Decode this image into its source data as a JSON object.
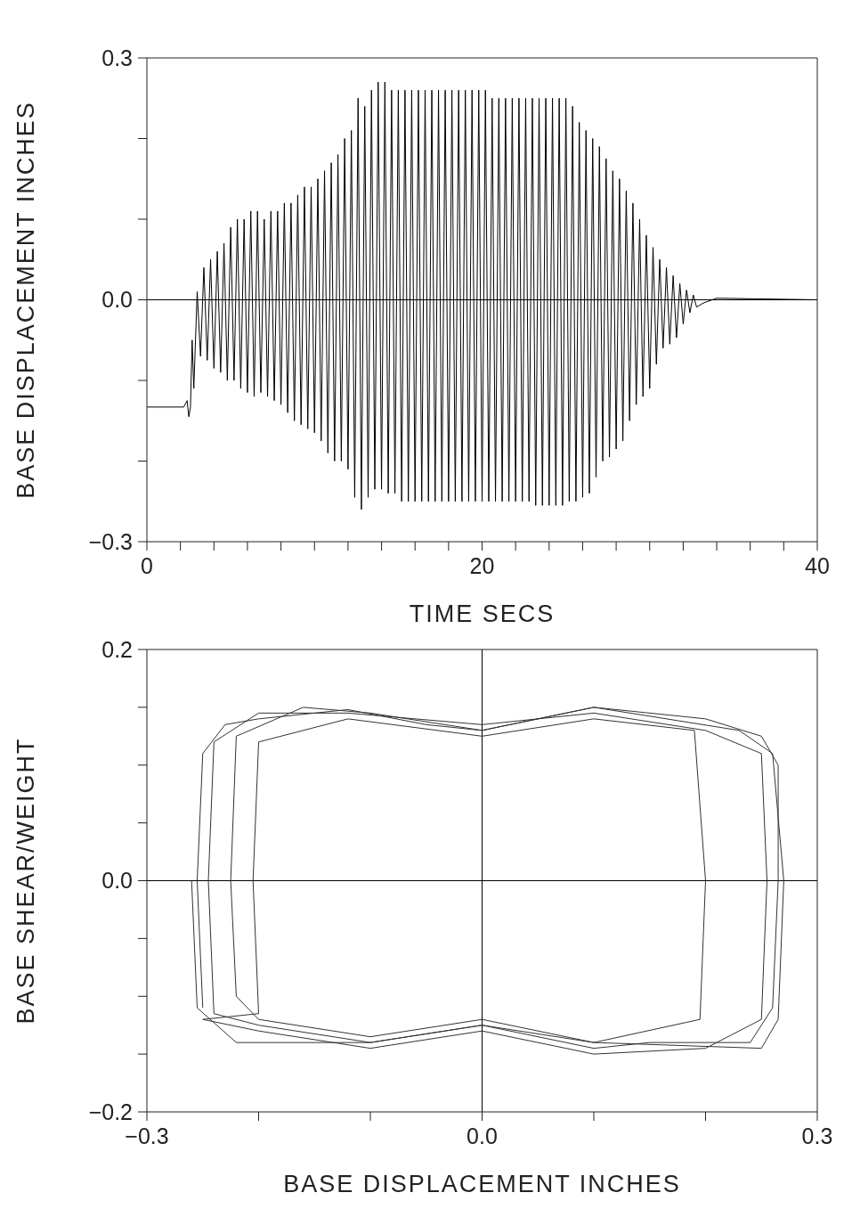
{
  "chart_data": [
    {
      "type": "line",
      "xlabel": "TIME    SECS",
      "ylabel": "BASE DISPLACEMENT INCHES",
      "marker": "none",
      "line_style": "solid",
      "xlim": [
        0,
        40
      ],
      "ylim": [
        -0.3,
        0.3
      ],
      "xticks": [
        0,
        {
          "value": 2,
          "label": null
        },
        {
          "value": 4,
          "label": null
        },
        {
          "value": 6,
          "label": null
        },
        {
          "value": 8,
          "label": null
        },
        {
          "value": 10,
          "label": null
        },
        {
          "value": 12,
          "label": null
        },
        {
          "value": 14,
          "label": null
        },
        {
          "value": 16,
          "label": null
        },
        {
          "value": 18,
          "label": null
        },
        20,
        {
          "value": 22,
          "label": null
        },
        {
          "value": 24,
          "label": null
        },
        {
          "value": 26,
          "label": null
        },
        {
          "value": 28,
          "label": null
        },
        {
          "value": 30,
          "label": null
        },
        {
          "value": 32,
          "label": null
        },
        {
          "value": 34,
          "label": null
        },
        {
          "value": 36,
          "label": null
        },
        {
          "value": 38,
          "label": null
        },
        40
      ],
      "yticks": [
        {
          "value": -0.3,
          "label": "−0.3"
        },
        {
          "value": -0.2,
          "label": null
        },
        {
          "value": -0.1,
          "label": null
        },
        {
          "value": 0,
          "label": "0.0"
        },
        {
          "value": 0.1,
          "label": null
        },
        {
          "value": 0.2,
          "label": null
        },
        0.3
      ],
      "ref_lines": [
        {
          "axis": "y",
          "value": 0,
          "color": "#000000"
        }
      ],
      "series": [
        {
          "color": "#000000",
          "x": [
            0,
            2.2,
            2.4,
            2.5,
            2.6,
            2.7,
            2.8,
            3.0,
            3.2,
            3.4,
            3.6,
            3.8,
            4.0,
            4.2,
            4.4,
            4.6,
            4.8,
            5.0,
            5.2,
            5.4,
            5.6,
            5.8,
            6.0,
            6.2,
            6.4,
            6.6,
            6.8,
            7.0,
            7.2,
            7.4,
            7.6,
            7.8,
            8.0,
            8.2,
            8.4,
            8.6,
            8.8,
            9.0,
            9.2,
            9.4,
            9.6,
            9.8,
            10.0,
            10.2,
            10.4,
            10.6,
            10.8,
            11.0,
            11.2,
            11.4,
            11.6,
            11.8,
            12.0,
            12.2,
            12.4,
            12.6,
            12.8,
            13.0,
            13.2,
            13.4,
            13.6,
            13.8,
            14.0,
            14.2,
            14.4,
            14.6,
            14.8,
            15.0,
            15.2,
            15.4,
            15.6,
            15.8,
            16.0,
            16.2,
            16.4,
            16.6,
            16.8,
            17.0,
            17.2,
            17.4,
            17.6,
            17.8,
            18.0,
            18.2,
            18.4,
            18.6,
            18.8,
            19.0,
            19.2,
            19.4,
            19.6,
            19.8,
            20.0,
            20.2,
            20.4,
            20.6,
            20.8,
            21.0,
            21.2,
            21.4,
            21.6,
            21.8,
            22.0,
            22.2,
            22.4,
            22.6,
            22.8,
            23.0,
            23.2,
            23.4,
            23.6,
            23.8,
            24.0,
            24.2,
            24.4,
            24.6,
            24.8,
            25.0,
            25.2,
            25.4,
            25.6,
            25.8,
            26.0,
            26.2,
            26.4,
            26.6,
            26.8,
            27.0,
            27.2,
            27.4,
            27.6,
            27.8,
            28.0,
            28.2,
            28.4,
            28.6,
            28.8,
            29.0,
            29.2,
            29.4,
            29.6,
            29.8,
            30.0,
            30.2,
            30.4,
            30.6,
            30.8,
            31.0,
            31.2,
            31.4,
            31.6,
            31.8,
            32.0,
            32.2,
            32.4,
            32.6,
            32.8,
            33.2,
            34,
            40
          ],
          "values": [
            -0.133,
            -0.133,
            -0.125,
            -0.145,
            -0.133,
            -0.05,
            -0.11,
            0.01,
            -0.07,
            0.04,
            -0.075,
            0.05,
            -0.085,
            0.06,
            -0.09,
            0.07,
            -0.1,
            0.09,
            -0.1,
            0.1,
            -0.11,
            0.1,
            -0.115,
            0.11,
            -0.12,
            0.11,
            -0.115,
            0.1,
            -0.12,
            0.11,
            -0.125,
            0.11,
            -0.13,
            0.12,
            -0.14,
            0.12,
            -0.15,
            0.13,
            -0.155,
            0.14,
            -0.16,
            0.14,
            -0.165,
            0.15,
            -0.175,
            0.16,
            -0.19,
            0.17,
            -0.2,
            0.18,
            -0.2,
            0.2,
            -0.21,
            0.21,
            -0.245,
            0.25,
            -0.26,
            0.24,
            -0.245,
            0.26,
            -0.235,
            0.27,
            -0.235,
            0.27,
            -0.24,
            0.26,
            -0.24,
            0.26,
            -0.25,
            0.26,
            -0.25,
            0.26,
            -0.25,
            0.26,
            -0.25,
            0.26,
            -0.25,
            0.26,
            -0.25,
            0.26,
            -0.25,
            0.26,
            -0.25,
            0.26,
            -0.25,
            0.26,
            -0.25,
            0.26,
            -0.25,
            0.26,
            -0.25,
            0.26,
            -0.25,
            0.26,
            -0.25,
            0.25,
            -0.25,
            0.25,
            -0.25,
            0.25,
            -0.25,
            0.25,
            -0.25,
            0.25,
            -0.25,
            0.25,
            -0.25,
            0.25,
            -0.255,
            0.25,
            -0.255,
            0.25,
            -0.255,
            0.25,
            -0.255,
            0.25,
            -0.255,
            0.25,
            -0.25,
            0.24,
            -0.25,
            0.22,
            -0.245,
            0.21,
            -0.24,
            0.2,
            -0.22,
            0.19,
            -0.2,
            0.175,
            -0.195,
            0.16,
            -0.185,
            0.15,
            -0.175,
            0.135,
            -0.15,
            0.12,
            -0.13,
            0.1,
            -0.12,
            0.08,
            -0.11,
            0.065,
            -0.08,
            0.05,
            -0.06,
            0.04,
            -0.055,
            0.03,
            -0.047,
            0.02,
            -0.03,
            0.012,
            -0.016,
            0.006,
            -0.009,
            -0.004,
            0.002,
            0
          ]
        }
      ]
    },
    {
      "type": "line",
      "xlabel": "BASE DISPLACEMENT INCHES",
      "ylabel": "BASE SHEAR/WEIGHT",
      "marker": "none",
      "line_style": "solid",
      "xlim": [
        -0.3,
        0.3
      ],
      "ylim": [
        -0.2,
        0.2
      ],
      "xticks": [
        {
          "value": -0.3,
          "label": "−0.3"
        },
        {
          "value": -0.2,
          "label": null
        },
        {
          "value": -0.1,
          "label": null
        },
        {
          "value": 0,
          "label": "0.0"
        },
        {
          "value": 0.1,
          "label": null
        },
        {
          "value": 0.2,
          "label": null
        },
        0.3
      ],
      "yticks": [
        {
          "value": -0.2,
          "label": "−0.2"
        },
        {
          "value": -0.15,
          "label": null
        },
        {
          "value": -0.1,
          "label": null
        },
        {
          "value": -0.05,
          "label": null
        },
        {
          "value": 0,
          "label": "0.0"
        },
        {
          "value": 0.05,
          "label": null
        },
        {
          "value": 0.1,
          "label": null
        },
        {
          "value": 0.15,
          "label": null
        },
        0.2
      ],
      "ref_lines": [
        {
          "axis": "x",
          "value": 0,
          "color": "#000000"
        },
        {
          "axis": "y",
          "value": 0,
          "color": "#000000"
        }
      ],
      "series": [
        {
          "color": "#333333",
          "x": [
            -0.25,
            -0.255,
            -0.25,
            -0.23,
            -0.2,
            -0.12,
            -0.05,
            0,
            0.05,
            0.1,
            0.2,
            0.25,
            0.265,
            0.265,
            0.26,
            0.24,
            0.15,
            0.1,
            0,
            -0.1,
            -0.2,
            -0.24,
            -0.245,
            -0.24,
            -0.2,
            -0.12,
            0,
            0.1,
            0.2,
            0.25,
            0.255,
            0.25,
            0.2,
            0.1,
            0,
            -0.1,
            -0.2,
            -0.25,
            -0.2,
            -0.205,
            -0.2,
            -0.12,
            0,
            0.1,
            0.19,
            0.2,
            0.195,
            0.1,
            0,
            -0.1,
            -0.2,
            -0.22,
            -0.225,
            -0.22,
            -0.16,
            -0.1,
            0,
            0.1,
            0.23,
            0.26,
            0.27,
            0.265,
            0.25,
            0.1,
            0,
            -0.1,
            -0.22,
            -0.255,
            -0.26
          ],
          "values": [
            -0.11,
            0.0,
            0.11,
            0.135,
            0.14,
            0.148,
            0.135,
            0.13,
            0.14,
            0.15,
            0.14,
            0.125,
            0.1,
            0.0,
            -0.11,
            -0.14,
            -0.14,
            -0.145,
            -0.125,
            -0.14,
            -0.125,
            -0.115,
            0.0,
            0.12,
            0.145,
            0.145,
            0.135,
            0.145,
            0.13,
            0.11,
            0.0,
            -0.12,
            -0.145,
            -0.15,
            -0.13,
            -0.145,
            -0.13,
            -0.12,
            -0.115,
            0.0,
            0.12,
            0.14,
            0.125,
            0.14,
            0.13,
            0.0,
            -0.12,
            -0.14,
            -0.12,
            -0.135,
            -0.12,
            -0.1,
            0.0,
            0.125,
            0.15,
            0.145,
            0.13,
            0.15,
            0.13,
            0.11,
            0.0,
            -0.12,
            -0.145,
            -0.14,
            -0.125,
            -0.14,
            -0.14,
            -0.11,
            0.0
          ]
        }
      ]
    }
  ]
}
